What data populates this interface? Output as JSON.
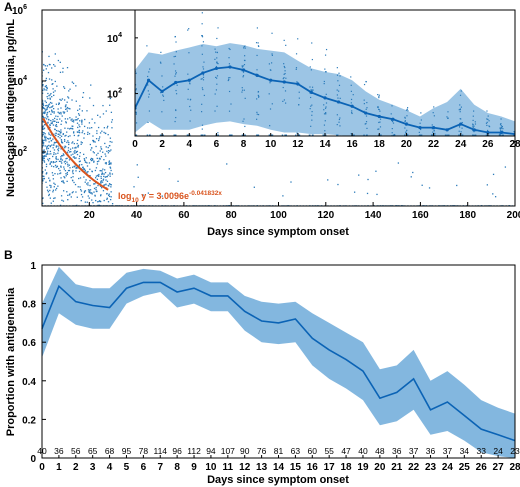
{
  "colors": {
    "points": "#2b7bba",
    "band": "#5a9fd4",
    "line": "#0b63b5",
    "fit": "#d9541e",
    "axes": "#000000"
  },
  "panels": {
    "A": {
      "label": "A"
    },
    "B": {
      "label": "B"
    }
  },
  "fit_equation": {
    "prefix": "log",
    "subscript": "10",
    "middle": " y = 3.0096e",
    "exponent": "-0.041832x"
  },
  "chart_data": [
    {
      "type": "scatter",
      "panel": "A",
      "xlabel": "Days since symptom onset",
      "ylabel": "Nucleocapsid antigenemia, pg/mL",
      "xlim": [
        0,
        200
      ],
      "ylim": [
        3,
        1000000
      ],
      "yscale": "log",
      "x_ticks": [
        "20",
        "40",
        "60",
        "80",
        "100",
        "120",
        "140",
        "160",
        "180",
        "200"
      ],
      "y_ticks": [
        {
          "base": "10",
          "exp": "2"
        },
        {
          "base": "10",
          "exp": "4"
        },
        {
          "base": "10",
          "exp": "6"
        }
      ],
      "fit": {
        "type": "exponential-log10",
        "a": 3.0096,
        "b": -0.041832,
        "x_range": [
          0,
          28
        ]
      },
      "points_description_values": {
        "dense_region_x": [
          0,
          30
        ],
        "detection_floor_y": 3
      }
    },
    {
      "type": "line",
      "panel": "A-inset",
      "xlim": [
        0,
        28
      ],
      "ylim": [
        3,
        100000
      ],
      "yscale": "log",
      "x_ticks": [
        "0",
        "2",
        "4",
        "6",
        "8",
        "10",
        "12",
        "14",
        "16",
        "18",
        "20",
        "22",
        "24",
        "26",
        "28"
      ],
      "y_ticks": [
        {
          "base": "10",
          "exp": "2"
        },
        {
          "base": "10",
          "exp": "4"
        }
      ],
      "x": [
        0,
        1,
        2,
        3,
        4,
        5,
        6,
        7,
        8,
        9,
        10,
        11,
        12,
        13,
        14,
        15,
        16,
        17,
        18,
        19,
        20,
        21,
        22,
        23,
        24,
        25,
        26,
        27,
        28
      ],
      "median": [
        30,
        300,
        120,
        250,
        300,
        550,
        800,
        900,
        700,
        450,
        300,
        260,
        220,
        110,
        70,
        50,
        35,
        20,
        15,
        12,
        8,
        6,
        6,
        5,
        8,
        5,
        4,
        4,
        3.5
      ],
      "upper": [
        700,
        3000,
        2500,
        3500,
        4500,
        6000,
        5000,
        6500,
        5500,
        4000,
        3500,
        3000,
        1500,
        800,
        600,
        500,
        300,
        120,
        60,
        40,
        25,
        15,
        30,
        50,
        150,
        40,
        20,
        15,
        10
      ],
      "lower": [
        4,
        10,
        5,
        5,
        5,
        7,
        9,
        10,
        8,
        7,
        5,
        4,
        4,
        3.5,
        3.5,
        3.2,
        3,
        3,
        3,
        3,
        3,
        3,
        3,
        3,
        3,
        3,
        3,
        3,
        3
      ]
    },
    {
      "type": "area",
      "panel": "B",
      "xlabel": "Days since symptom onset",
      "ylabel": "Proportion with antigenemia",
      "xlim": [
        0,
        28
      ],
      "ylim": [
        0,
        1
      ],
      "y_ticks": [
        "0",
        "0.2",
        "0.4",
        "0.6",
        "0.8",
        "1"
      ],
      "categories": [
        "0",
        "1",
        "2",
        "3",
        "4",
        "5",
        "6",
        "7",
        "8",
        "9",
        "10",
        "11",
        "12",
        "13",
        "14",
        "15",
        "16",
        "17",
        "18",
        "19",
        "20",
        "21",
        "22",
        "23",
        "24",
        "25",
        "26",
        "27",
        "28"
      ],
      "counts": [
        "40",
        "36",
        "56",
        "65",
        "68",
        "95",
        "78",
        "114",
        "96",
        "112",
        "94",
        "107",
        "90",
        "76",
        "81",
        "63",
        "60",
        "55",
        "47",
        "40",
        "48",
        "36",
        "37",
        "36",
        "37",
        "34",
        "33",
        "24",
        "23"
      ],
      "values": [
        0.67,
        0.89,
        0.81,
        0.79,
        0.78,
        0.88,
        0.91,
        0.91,
        0.86,
        0.88,
        0.84,
        0.84,
        0.76,
        0.71,
        0.7,
        0.72,
        0.62,
        0.56,
        0.51,
        0.45,
        0.31,
        0.34,
        0.41,
        0.25,
        0.29,
        0.22,
        0.15,
        0.12,
        0.09
      ],
      "upper": [
        0.8,
        0.99,
        0.9,
        0.88,
        0.88,
        0.96,
        0.98,
        0.97,
        0.93,
        0.95,
        0.91,
        0.91,
        0.84,
        0.81,
        0.8,
        0.81,
        0.75,
        0.7,
        0.65,
        0.6,
        0.46,
        0.48,
        0.56,
        0.4,
        0.45,
        0.38,
        0.3,
        0.26,
        0.23
      ],
      "lower": [
        0.52,
        0.75,
        0.69,
        0.67,
        0.67,
        0.8,
        0.84,
        0.86,
        0.78,
        0.8,
        0.76,
        0.76,
        0.66,
        0.6,
        0.59,
        0.6,
        0.48,
        0.41,
        0.36,
        0.3,
        0.17,
        0.19,
        0.25,
        0.12,
        0.14,
        0.09,
        0.03,
        0.01,
        0.0
      ]
    }
  ]
}
